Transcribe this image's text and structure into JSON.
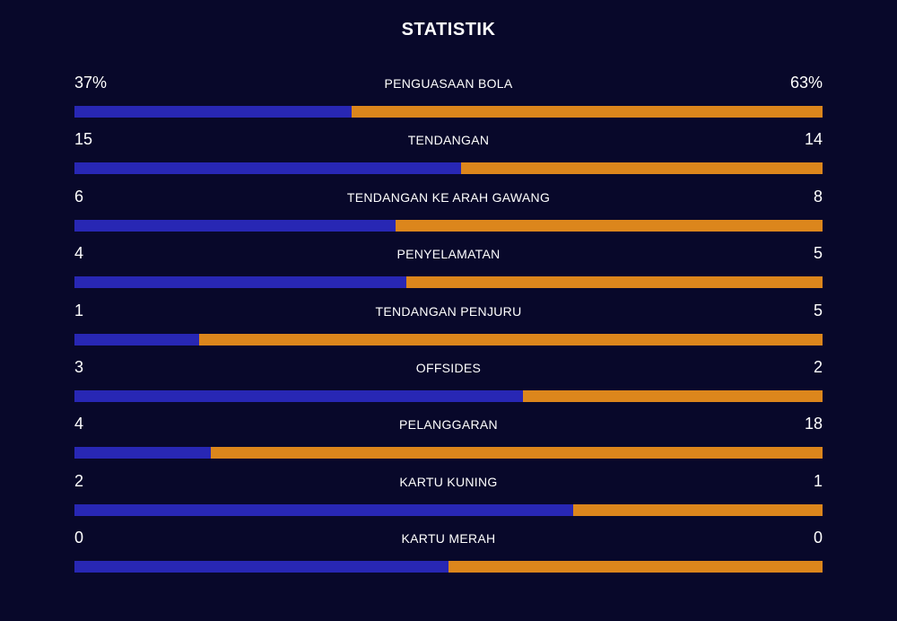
{
  "header": {
    "title": "STATISTIK"
  },
  "colors": {
    "background": "#08082a",
    "home": "#2827b4",
    "away": "#dc861c",
    "text": "#ffffff"
  },
  "stats": [
    {
      "label": "PENGUASAAN BOLA",
      "home": "37%",
      "away": "63%",
      "home_share": 0.37
    },
    {
      "label": "TENDANGAN",
      "home": "15",
      "away": "14",
      "home_share": 0.517
    },
    {
      "label": "TENDANGAN KE ARAH GAWANG",
      "home": "6",
      "away": "8",
      "home_share": 0.429
    },
    {
      "label": "PENYELAMATAN",
      "home": "4",
      "away": "5",
      "home_share": 0.444
    },
    {
      "label": "TENDANGAN PENJURU",
      "home": "1",
      "away": "5",
      "home_share": 0.167
    },
    {
      "label": "OFFSIDES",
      "home": "3",
      "away": "2",
      "home_share": 0.6
    },
    {
      "label": "PELANGGARAN",
      "home": "4",
      "away": "18",
      "home_share": 0.182
    },
    {
      "label": "KARTU KUNING",
      "home": "2",
      "away": "1",
      "home_share": 0.667
    },
    {
      "label": "KARTU MERAH",
      "home": "0",
      "away": "0",
      "home_share": 0.5
    }
  ]
}
